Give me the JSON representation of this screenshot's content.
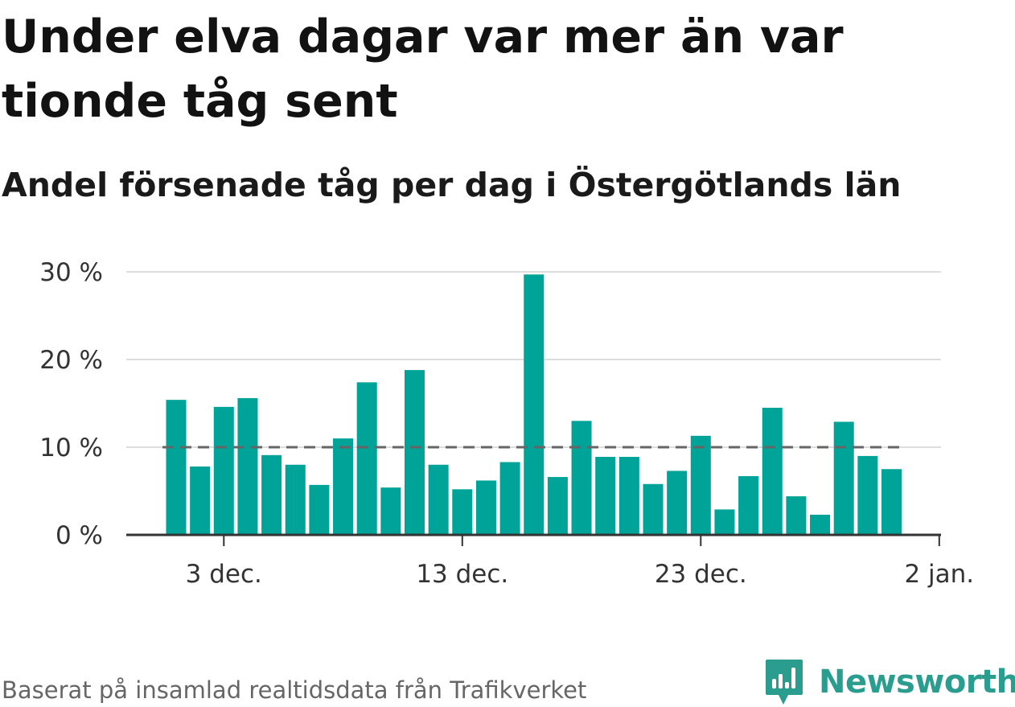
{
  "title": "Under elva dagar var mer än var tionde tåg sent",
  "subtitle": "Andel försenade tåg per dag i Östergötlands län",
  "source": "Baserat på insamlad realtidsdata från Trafikverket",
  "brand": {
    "name": "Newsworthy",
    "icon": "newsworthy-chart-icon",
    "color": "#2a9d8f"
  },
  "colors": {
    "bar": "#00a398",
    "grid": "#dddddd",
    "axis": "#333333",
    "reference": "#666666"
  },
  "chart_data": {
    "type": "bar",
    "x": [
      "2019-12-01",
      "2019-12-02",
      "2019-12-03",
      "2019-12-04",
      "2019-12-05",
      "2019-12-06",
      "2019-12-07",
      "2019-12-08",
      "2019-12-09",
      "2019-12-10",
      "2019-12-11",
      "2019-12-12",
      "2019-12-13",
      "2019-12-14",
      "2019-12-15",
      "2019-12-16",
      "2019-12-17",
      "2019-12-18",
      "2019-12-19",
      "2019-12-20",
      "2019-12-21",
      "2019-12-22",
      "2019-12-23",
      "2019-12-24",
      "2019-12-25",
      "2019-12-26",
      "2019-12-27",
      "2019-12-28",
      "2019-12-29",
      "2019-12-30",
      "2019-12-31",
      "2020-01-01"
    ],
    "values": [
      15.4,
      7.8,
      14.6,
      15.6,
      9.1,
      8.0,
      5.7,
      11.0,
      17.4,
      5.4,
      18.8,
      8.0,
      5.2,
      6.2,
      8.3,
      29.7,
      6.6,
      13.0,
      8.9,
      8.9,
      5.8,
      7.3,
      11.3,
      2.9,
      6.7,
      14.5,
      4.4,
      2.3,
      12.9,
      9.0,
      7.5,
      null
    ],
    "ylim": [
      0,
      30
    ],
    "yticks": [
      0,
      10,
      20,
      30
    ],
    "ytick_labels": [
      "0 %",
      "10 %",
      "20 %",
      "30 %"
    ],
    "xticks": [
      "2019-12-03",
      "2019-12-13",
      "2019-12-23",
      "2020-01-02"
    ],
    "xtick_labels": [
      "3 dec.",
      "13 dec.",
      "23 dec.",
      "2 jan."
    ],
    "reference_line": 10,
    "grid": true
  }
}
